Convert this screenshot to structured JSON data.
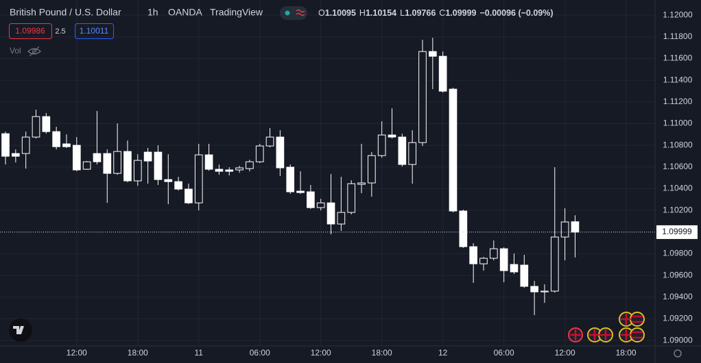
{
  "header": {
    "symbol": "British Pound / U.S. Dollar",
    "interval": "1h",
    "exchange": "OANDA",
    "source": "TradingView",
    "o_label": "O",
    "h_label": "H",
    "l_label": "L",
    "c_label": "C",
    "change": "−0.00096 (−0.09%)",
    "sell": "1.09986",
    "spread": "2.5",
    "buy": "1.10011",
    "volume_label": "Vol"
  },
  "chart_data": {
    "type": "candlestick",
    "x": [
      0,
      1,
      2,
      3,
      4,
      5,
      6,
      7,
      8,
      9,
      10,
      11,
      12,
      13,
      14,
      15,
      16,
      17,
      18,
      19,
      20,
      21,
      22,
      23,
      24,
      25,
      26,
      27,
      28,
      29,
      30,
      31,
      32,
      33,
      34,
      35,
      36,
      37,
      38,
      39,
      40,
      41,
      42,
      43,
      44,
      45,
      46,
      47,
      48,
      49,
      50,
      51,
      52,
      53,
      54,
      55,
      56
    ],
    "open": [
      1.10907,
      1.10724,
      1.10724,
      1.10876,
      1.11065,
      1.10926,
      1.10813,
      1.108,
      1.10579,
      1.10724,
      1.10724,
      1.10541,
      1.10743,
      1.10472,
      1.10737,
      1.10737,
      1.10484,
      1.10465,
      1.10396,
      1.10269,
      1.10712,
      1.10579,
      1.10573,
      1.10573,
      1.10585,
      1.10648,
      1.10794,
      1.10876,
      1.10598,
      1.10377,
      1.10371,
      1.10225,
      1.10269,
      1.10074,
      1.10181,
      1.1044,
      1.10453,
      1.10705,
      1.10895,
      1.10876,
      1.10623,
      1.10825,
      1.11665,
      1.11621,
      1.11318,
      1.10194,
      1.09865,
      1.09707,
      1.09758,
      1.09846,
      1.09701,
      1.09695,
      1.09499,
      1.09448,
      1.09455,
      1.09954,
      1.10095
    ],
    "high": [
      1.10926,
      1.10762,
      1.10926,
      1.11128,
      1.11097,
      1.10971,
      1.10901,
      1.10876,
      1.10655,
      1.11116,
      1.10762,
      1.11002,
      1.10844,
      1.10718,
      1.10775,
      1.108,
      1.10718,
      1.10509,
      1.10446,
      1.10813,
      1.10813,
      1.10623,
      1.10598,
      1.10611,
      1.10667,
      1.10813,
      1.10958,
      1.10939,
      1.10623,
      1.1056,
      1.10434,
      1.10307,
      1.10535,
      1.10509,
      1.10478,
      1.10813,
      1.10737,
      1.11021,
      1.11141,
      1.10907,
      1.10939,
      1.11773,
      1.11792,
      1.11665,
      1.11331,
      1.10206,
      1.09897,
      1.0977,
      1.09922,
      1.09859,
      1.09802,
      1.09789,
      1.09549,
      1.09518,
      1.10598,
      1.10219,
      1.10154
    ],
    "low": [
      1.10623,
      1.10642,
      1.10585,
      1.10863,
      1.10907,
      1.10762,
      1.10775,
      1.1056,
      1.10573,
      1.10623,
      1.10269,
      1.10528,
      1.10459,
      1.10427,
      1.10446,
      1.10434,
      1.10257,
      1.10383,
      1.10257,
      1.102,
      1.10566,
      1.10528,
      1.10522,
      1.10547,
      1.1056,
      1.10636,
      1.10781,
      1.10516,
      1.10352,
      1.10352,
      1.10213,
      1.102,
      1.09979,
      1.10011,
      1.10162,
      1.10358,
      1.10326,
      1.10686,
      1.10863,
      1.10604,
      1.10446,
      1.10794,
      1.11318,
      1.11286,
      1.10181,
      1.09853,
      1.09531,
      1.09644,
      1.09739,
      1.09537,
      1.09613,
      1.09486,
      1.09234,
      1.09347,
      1.09442,
      1.09739,
      1.09766
    ],
    "close": [
      1.10699,
      1.10699,
      1.10876,
      1.11065,
      1.10926,
      1.10787,
      1.10787,
      1.10573,
      1.10648,
      1.10648,
      1.10541,
      1.10743,
      1.10472,
      1.10661,
      1.10655,
      1.10484,
      1.10465,
      1.10396,
      1.10269,
      1.10712,
      1.10579,
      1.1056,
      1.1056,
      1.10592,
      1.10648,
      1.10794,
      1.10876,
      1.10592,
      1.10371,
      1.10364,
      1.10225,
      1.10269,
      1.10074,
      1.10181,
      1.10446,
      1.10453,
      1.10705,
      1.10895,
      1.10876,
      1.10623,
      1.10825,
      1.11665,
      1.11621,
      1.11299,
      1.10194,
      1.09865,
      1.09707,
      1.09758,
      1.09846,
      1.09644,
      1.09632,
      1.09499,
      1.09448,
      1.09455,
      1.09954,
      1.10093,
      1.09999
    ],
    "color": "#ffffff",
    "xlim": [
      -0.54,
      63.86
    ],
    "xticks": [
      {
        "value": 7,
        "label": "12:00"
      },
      {
        "value": 13,
        "label": "18:00"
      },
      {
        "value": 19,
        "label": "11"
      },
      {
        "value": 25,
        "label": "06:00"
      },
      {
        "value": 31,
        "label": "12:00"
      },
      {
        "value": 37,
        "label": "18:00"
      },
      {
        "value": 43,
        "label": "12"
      },
      {
        "value": 49,
        "label": "06:00"
      },
      {
        "value": 55,
        "label": "12:00"
      },
      {
        "value": 61,
        "label": "18:00"
      }
    ],
    "ylim": [
      1.0895,
      1.1214
    ],
    "yticks": [
      {
        "value": 1.09,
        "label": "1.09000"
      },
      {
        "value": 1.092,
        "label": "1.09200"
      },
      {
        "value": 1.094,
        "label": "1.09400"
      },
      {
        "value": 1.096,
        "label": "1.09600"
      },
      {
        "value": 1.098,
        "label": "1.09800"
      },
      {
        "value": 1.1,
        "label": "1.10000"
      },
      {
        "value": 1.102,
        "label": "1.10200"
      },
      {
        "value": 1.104,
        "label": "1.10400"
      },
      {
        "value": 1.106,
        "label": "1.10600"
      },
      {
        "value": 1.108,
        "label": "1.10800"
      },
      {
        "value": 1.11,
        "label": "1.11000"
      },
      {
        "value": 1.112,
        "label": "1.11200"
      },
      {
        "value": 1.114,
        "label": "1.11400"
      },
      {
        "value": 1.116,
        "label": "1.11600"
      },
      {
        "value": 1.118,
        "label": "1.11800"
      },
      {
        "value": 1.12,
        "label": "1.12000"
      }
    ],
    "grid": true
  }
}
